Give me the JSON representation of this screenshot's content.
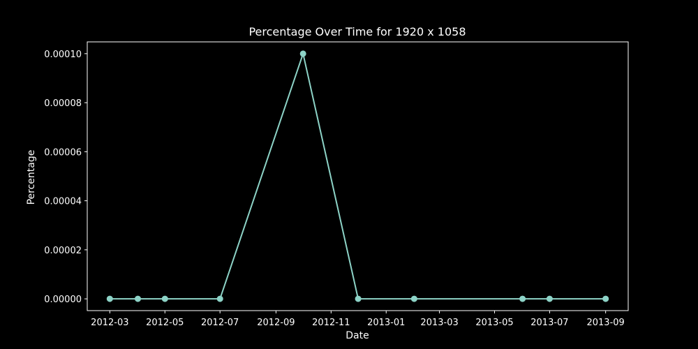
{
  "chart_data": {
    "type": "line",
    "title": "Percentage Over Time for 1920 x 1058",
    "xlabel": "Date",
    "ylabel": "Percentage",
    "x": [
      "2012-03-01",
      "2012-04-01",
      "2012-05-01",
      "2012-07-01",
      "2012-10-01",
      "2012-12-01",
      "2013-02-01",
      "2013-06-01",
      "2013-07-01",
      "2013-09-01"
    ],
    "y": [
      0,
      0,
      0,
      0,
      0.0001,
      0,
      0,
      0,
      0,
      0
    ],
    "x_ticks": [
      "2012-03",
      "2012-05",
      "2012-07",
      "2012-09",
      "2012-11",
      "2013-01",
      "2013-03",
      "2013-05",
      "2013-07",
      "2013-09"
    ],
    "y_ticks": [
      "0.00000",
      "0.00002",
      "0.00004",
      "0.00006",
      "0.00008",
      "0.00010"
    ],
    "ylim": [
      -4.8e-06,
      0.0001048
    ],
    "xlim": [
      "2012-02-05",
      "2013-09-26"
    ],
    "grid": false,
    "line_color": "#8dd3c7",
    "background": "#000000",
    "axis_color": "#ffffff"
  }
}
